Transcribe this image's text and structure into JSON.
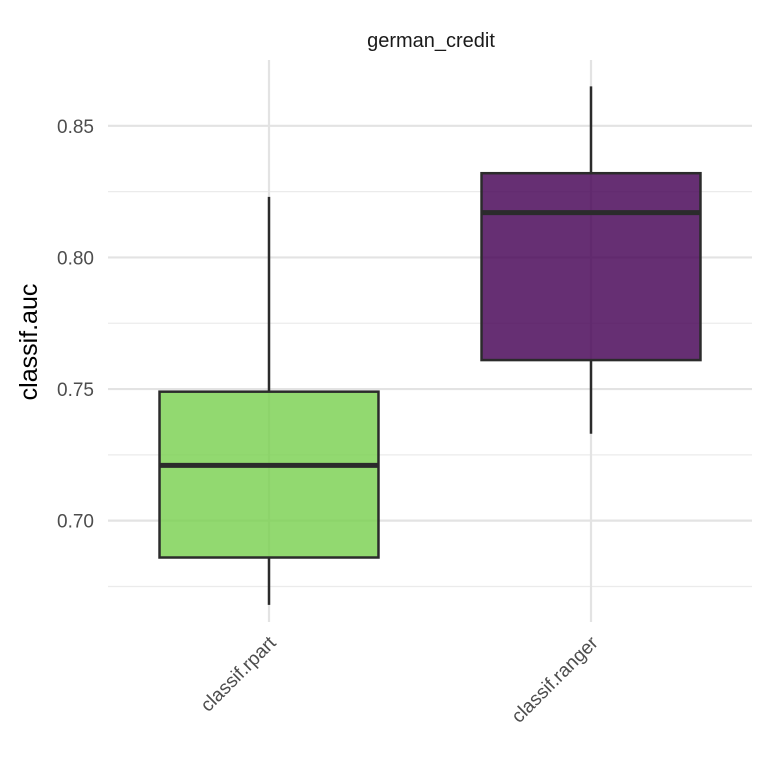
{
  "chart_data": {
    "type": "boxplot",
    "facet_title": "german_credit",
    "xlabel": "",
    "ylabel": "classif.auc",
    "categories": [
      "classif.rpart",
      "classif.ranger"
    ],
    "ylim": [
      0.6615,
      0.875
    ],
    "y_ticks": [
      0.7,
      0.75,
      0.8,
      0.85
    ],
    "y_tick_labels": [
      "0.70",
      "0.75",
      "0.80",
      "0.85"
    ],
    "grid": true,
    "legend": "none",
    "boxes": [
      {
        "category": "classif.rpart",
        "min": 0.668,
        "q1": 0.686,
        "median": 0.721,
        "q3": 0.749,
        "max": 0.823,
        "color": "#7ad151"
      },
      {
        "category": "classif.ranger",
        "min": 0.733,
        "q1": 0.761,
        "median": 0.817,
        "q3": 0.832,
        "max": 0.865,
        "color": "#440154"
      }
    ]
  }
}
